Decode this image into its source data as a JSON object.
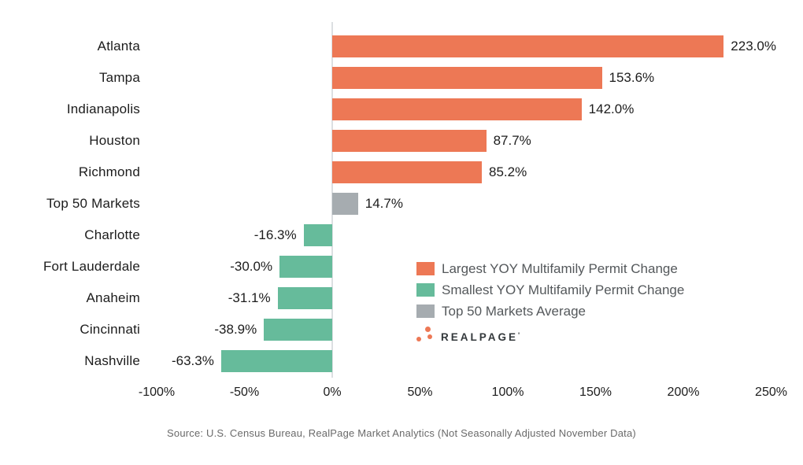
{
  "page": {
    "background": "#ffffff"
  },
  "chart_data": {
    "type": "bar",
    "orientation": "horizontal",
    "title": "",
    "categories": [
      "Atlanta",
      "Tampa",
      "Indianapolis",
      "Houston",
      "Richmond",
      "Top 50 Markets",
      "Charlotte",
      "Fort Lauderdale",
      "Anaheim",
      "Cincinnati",
      "Nashville"
    ],
    "values": [
      223.0,
      153.6,
      142.0,
      87.7,
      85.2,
      14.7,
      -16.3,
      -30.0,
      -31.1,
      -38.9,
      -63.3
    ],
    "value_labels": [
      "223.0%",
      "153.6%",
      "142.0%",
      "87.7%",
      "85.2%",
      "14.7%",
      "-16.3%",
      "-30.0%",
      "-31.1%",
      "-38.9%",
      "-63.3%"
    ],
    "series_of_point": [
      "largest",
      "largest",
      "largest",
      "largest",
      "largest",
      "average",
      "smallest",
      "smallest",
      "smallest",
      "smallest",
      "smallest"
    ],
    "x_ticks": [
      {
        "value": -100,
        "label": "-100%"
      },
      {
        "value": -50,
        "label": "-50%"
      },
      {
        "value": 0,
        "label": "0%"
      },
      {
        "value": 50,
        "label": "50%"
      },
      {
        "value": 100,
        "label": "100%"
      },
      {
        "value": 150,
        "label": "150%"
      },
      {
        "value": 200,
        "label": "200%"
      },
      {
        "value": 250,
        "label": "250%"
      }
    ],
    "xlim": [
      -100,
      250
    ],
    "grid": false,
    "legend_position": "center-right",
    "legend": [
      {
        "key": "largest",
        "label": "Largest YOY Multifamily Permit Change"
      },
      {
        "key": "smallest",
        "label": "Smallest YOY Multifamily Permit Change"
      },
      {
        "key": "average",
        "label": "Top 50 Markets Average"
      }
    ],
    "colors": {
      "largest": "#ED7855",
      "smallest": "#66BB9B",
      "average": "#A6ACB0",
      "axis_line": "#DCDFE2",
      "label_text": "#1C1C1C",
      "legend_text": "#54585B"
    }
  },
  "logo": {
    "text": "REALPAGE",
    "mark": "'"
  },
  "source": {
    "text": "Source: U.S. Census Bureau, RealPage Market Analytics (Not Seasonally Adjusted November Data)"
  }
}
